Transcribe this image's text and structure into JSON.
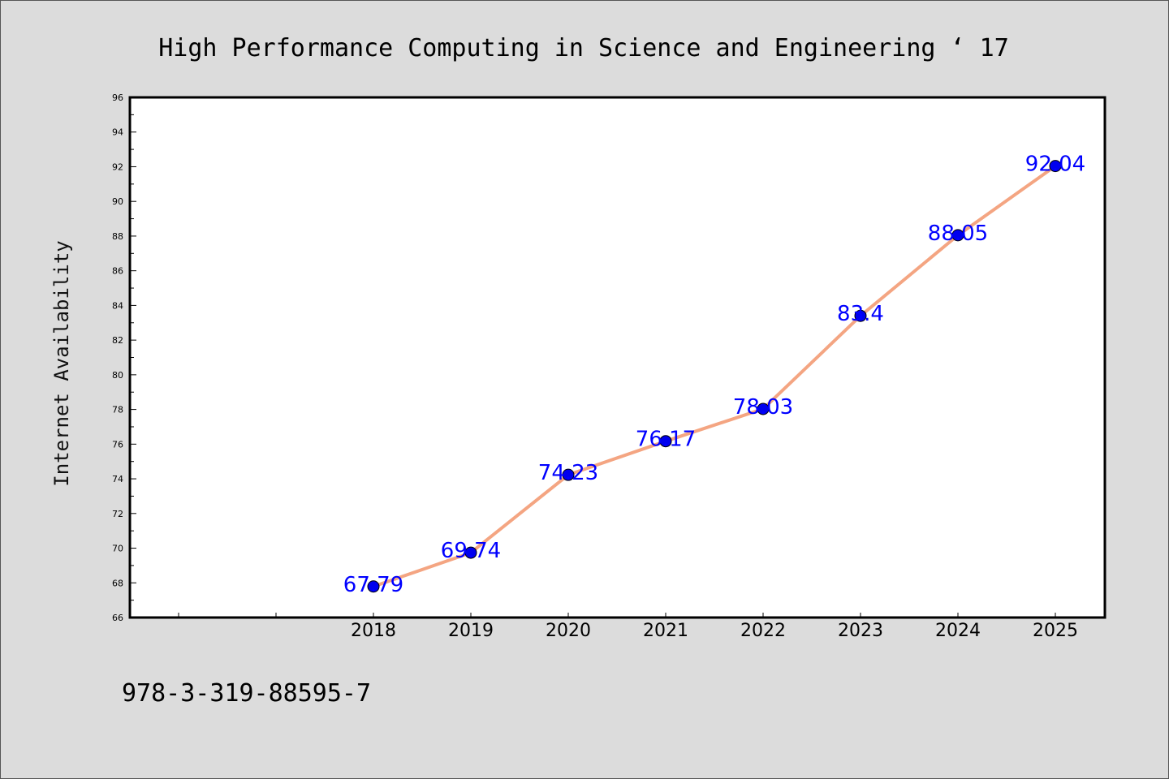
{
  "chart_data": {
    "type": "line",
    "title": "High Performance Computing in Science and Engineering  ‘ 17",
    "xlabel": "",
    "ylabel": "Internet Availability",
    "x": [
      "2018",
      "2019",
      "2020",
      "2021",
      "2022",
      "2023",
      "2024",
      "2025"
    ],
    "series": [
      {
        "values": [
          67.79,
          69.74,
          74.23,
          76.17,
          78.03,
          83.4,
          88.05,
          92.04
        ],
        "labels": [
          "67.79",
          "69.74",
          "74.23",
          "76.17",
          "78.03",
          "83.4",
          "88.05",
          "92.04"
        ]
      }
    ],
    "ylim": [
      66,
      96
    ],
    "yticks": [
      "66",
      "68",
      "70",
      "72",
      "74",
      "76",
      "78",
      "80",
      "82",
      "84",
      "86",
      "88",
      "90",
      "92",
      "94",
      "96"
    ],
    "grid": false,
    "legend": "none",
    "colors": {
      "line": "#f4a582",
      "marker": "#0000ee",
      "data_label": "#0000ff",
      "plot_background": "#ffffff",
      "page_background": "#dcdcdc"
    }
  },
  "footer": {
    "isbn": "978-3-319-88595-7"
  }
}
